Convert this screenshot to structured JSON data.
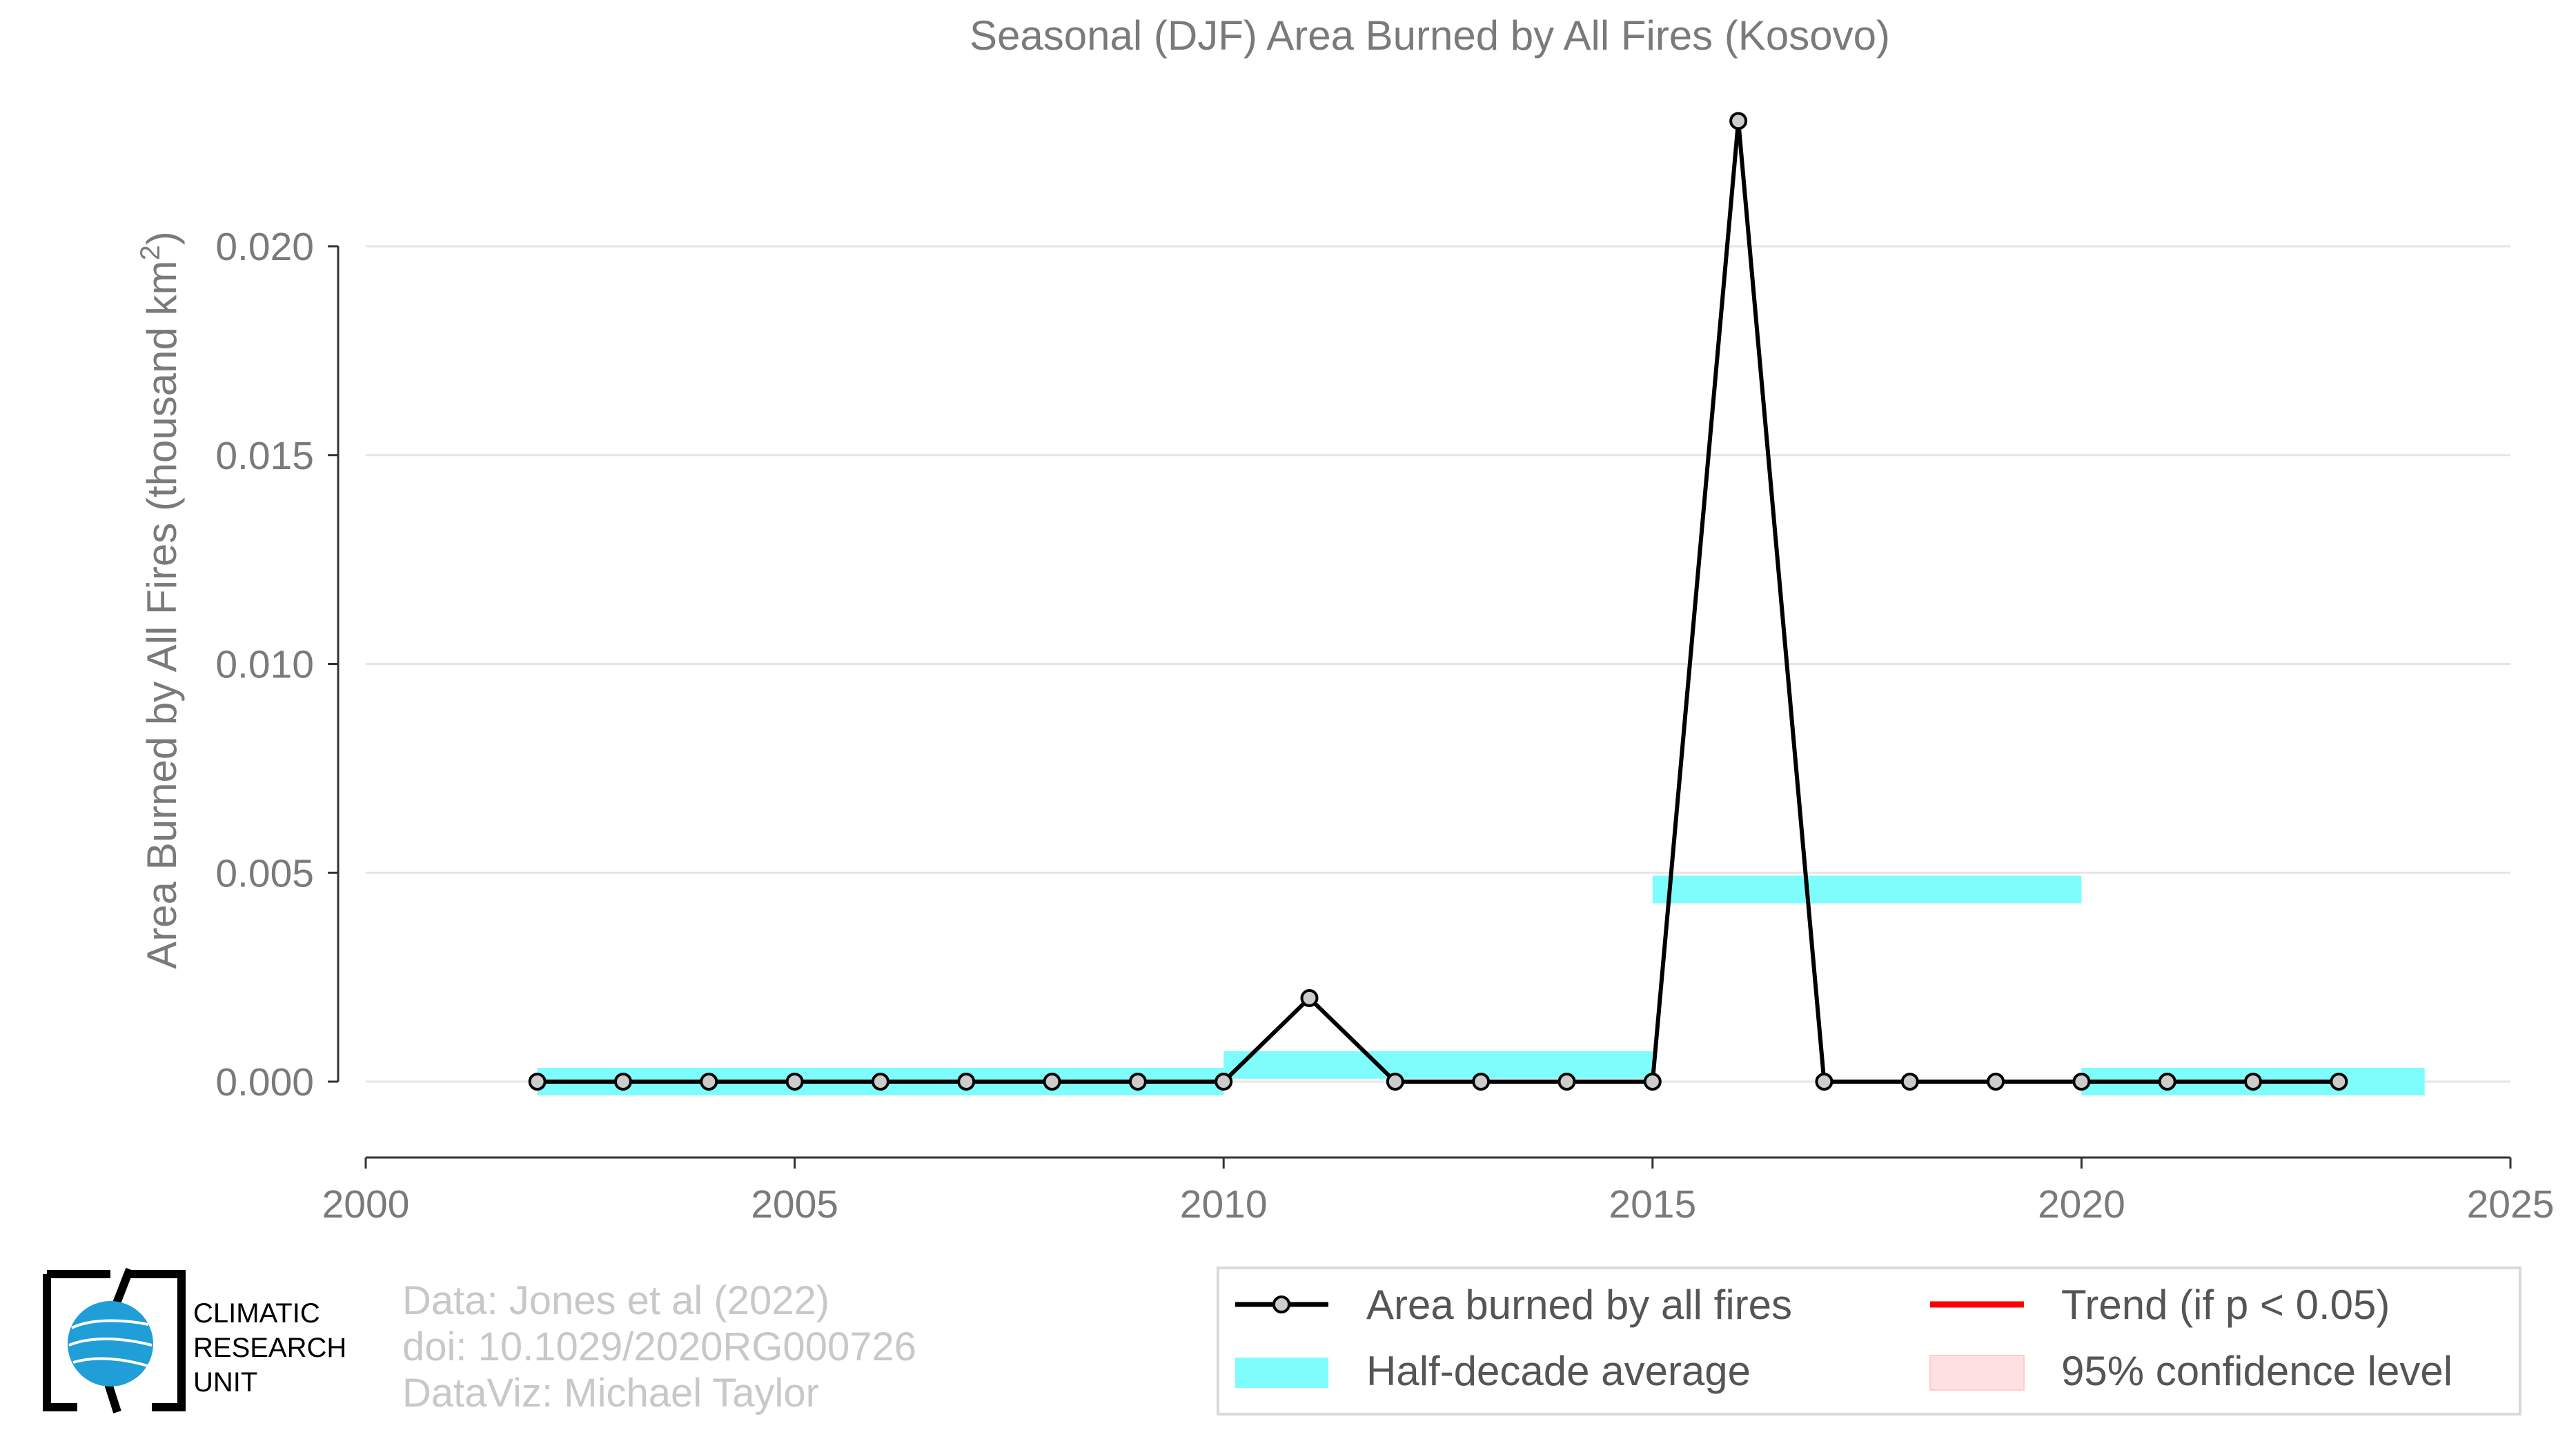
{
  "chart_data": {
    "type": "line",
    "title": "Seasonal (DJF) Area Burned by All Fires (Kosovo)",
    "ylabel": "Area Burned by All Fires (thousand km",
    "ylabel_sup": "2",
    "ylabel_end": ")",
    "xlabel": "",
    "xlim": [
      2000,
      2025
    ],
    "ylim": [
      -0.0018,
      0.0235
    ],
    "x_ticks": [
      "2000",
      "2005",
      "2010",
      "2015",
      "2020",
      "2025"
    ],
    "y_ticks": [
      "0.000",
      "0.005",
      "0.010",
      "0.015",
      "0.020"
    ],
    "grid": "horizontal",
    "series": [
      {
        "name": "Area burned by all fires",
        "color": "#000000",
        "x": [
          2002,
          2003,
          2004,
          2005,
          2006,
          2007,
          2008,
          2009,
          2010,
          2011,
          2012,
          2013,
          2014,
          2015,
          2016,
          2017,
          2018,
          2019,
          2020,
          2021,
          2022,
          2023
        ],
        "y": [
          0,
          0,
          0,
          0,
          0,
          0,
          0,
          0,
          0,
          0.002,
          0,
          0,
          0,
          0,
          0.023,
          0,
          0,
          0,
          0,
          0,
          0,
          0
        ]
      }
    ],
    "half_decade_average": {
      "name": "Half-decade average",
      "color": "#7ffcfc",
      "segments": [
        {
          "x0": 2002,
          "x1": 2010,
          "y": 0.0
        },
        {
          "x0": 2010,
          "x1": 2015,
          "y": 0.0004
        },
        {
          "x0": 2015,
          "x1": 2020,
          "y": 0.0046
        },
        {
          "x0": 2020,
          "x1": 2024,
          "y": 0.0
        }
      ]
    },
    "legend": {
      "placement": "bottom-right",
      "items": [
        {
          "label": "Area burned by all fires",
          "kind": "line-marker",
          "color": "#000000"
        },
        {
          "label": "Trend (if p < 0.05)",
          "kind": "line",
          "color": "#ff0000"
        },
        {
          "label": "Half-decade average",
          "kind": "band",
          "color": "#7ffcfc"
        },
        {
          "label": "95% confidence level",
          "kind": "band",
          "color": "#ffe0e0"
        }
      ]
    }
  },
  "credits": {
    "line1": "Data: Jones et al (2022)",
    "line2": "doi: 10.1029/2020RG000726",
    "line3": "DataViz: Michael Taylor"
  },
  "logo": {
    "line1": "CLIMATIC",
    "line2": "RESEARCH",
    "line3": "UNIT"
  }
}
